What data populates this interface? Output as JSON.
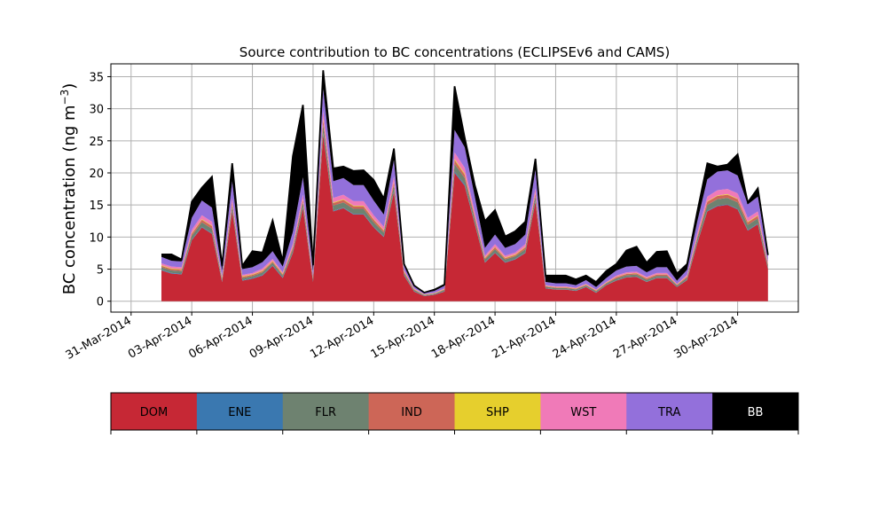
{
  "chart_data": [
    {
      "type": "area",
      "title": "Source contribution to BC concentrations (ECLIPSEv6 and CAMS)",
      "xlabel": "",
      "ylabel": "BC concentration (ng m⁻³)",
      "ylabel_main": "BC concentration (ng m",
      "ylabel_sup": "−3",
      "ylabel_end": ")",
      "xlim": [
        "2014-03-30",
        "2014-05-03"
      ],
      "ylim": [
        -1.7,
        37
      ],
      "grid": true,
      "stacked": true,
      "x_tick_labels": [
        "31-Mar-2014",
        "03-Apr-2014",
        "06-Apr-2014",
        "09-Apr-2014",
        "12-Apr-2014",
        "15-Apr-2014",
        "18-Apr-2014",
        "21-Apr-2014",
        "24-Apr-2014",
        "27-Apr-2014",
        "30-Apr-2014"
      ],
      "x_tick_dates": [
        "2014-03-31",
        "2014-04-03",
        "2014-04-06",
        "2014-04-09",
        "2014-04-12",
        "2014-04-15",
        "2014-04-18",
        "2014-04-21",
        "2014-04-24",
        "2014-04-27",
        "2014-04-30"
      ],
      "y_ticks": [
        0,
        5,
        10,
        15,
        20,
        25,
        30,
        35
      ],
      "y_tick_labels": [
        "0",
        "5",
        "10",
        "15",
        "20",
        "25",
        "30",
        "35"
      ],
      "x": [
        "2014-04-01 12:00",
        "2014-04-02 00:00",
        "2014-04-02 12:00",
        "2014-04-03 00:00",
        "2014-04-03 12:00",
        "2014-04-04 00:00",
        "2014-04-04 12:00",
        "2014-04-05 00:00",
        "2014-04-05 12:00",
        "2014-04-06 00:00",
        "2014-04-06 12:00",
        "2014-04-07 00:00",
        "2014-04-07 12:00",
        "2014-04-08 00:00",
        "2014-04-08 12:00",
        "2014-04-09 00:00",
        "2014-04-09 12:00",
        "2014-04-10 00:00",
        "2014-04-10 12:00",
        "2014-04-11 00:00",
        "2014-04-11 12:00",
        "2014-04-12 00:00",
        "2014-04-12 12:00",
        "2014-04-13 00:00",
        "2014-04-13 12:00",
        "2014-04-14 00:00",
        "2014-04-14 12:00",
        "2014-04-15 00:00",
        "2014-04-15 12:00",
        "2014-04-16 00:00",
        "2014-04-16 12:00",
        "2014-04-17 00:00",
        "2014-04-17 12:00",
        "2014-04-18 00:00",
        "2014-04-18 12:00",
        "2014-04-19 00:00",
        "2014-04-19 12:00",
        "2014-04-20 00:00",
        "2014-04-20 12:00",
        "2014-04-21 00:00",
        "2014-04-21 12:00",
        "2014-04-22 00:00",
        "2014-04-22 12:00",
        "2014-04-23 00:00",
        "2014-04-23 12:00",
        "2014-04-24 00:00",
        "2014-04-24 12:00",
        "2014-04-25 00:00",
        "2014-04-25 12:00",
        "2014-04-26 00:00",
        "2014-04-26 12:00",
        "2014-04-27 00:00",
        "2014-04-27 12:00",
        "2014-04-28 00:00",
        "2014-04-28 12:00",
        "2014-04-29 00:00",
        "2014-04-29 12:00",
        "2014-04-30 00:00",
        "2014-04-30 12:00",
        "2014-05-01 00:00",
        "2014-05-01 12:00"
      ],
      "series": [
        {
          "name": "DOM",
          "color": "#c62835",
          "values": [
            4.8,
            4.3,
            4.2,
            9.5,
            11.5,
            10.5,
            3.0,
            14.0,
            3.2,
            3.5,
            4.0,
            5.5,
            3.6,
            7.5,
            14.5,
            3.0,
            26.0,
            14.0,
            14.5,
            13.5,
            13.5,
            11.5,
            10.0,
            17.0,
            4.0,
            1.5,
            0.8,
            1.0,
            1.5,
            20.0,
            18.0,
            12.0,
            6.0,
            7.5,
            6.0,
            6.5,
            7.5,
            15.5,
            2.0,
            1.8,
            1.8,
            1.6,
            2.2,
            1.3,
            2.5,
            3.2,
            3.7,
            3.8,
            3.0,
            3.6,
            3.6,
            2.2,
            3.3,
            9.0,
            14.0,
            14.8,
            15.0,
            14.3,
            11.0,
            12.0,
            5.0
          ]
        },
        {
          "name": "ENE",
          "color": "#3a78b0",
          "values": [
            0.1,
            0.1,
            0.1,
            0.1,
            0.1,
            0.1,
            0.1,
            0.1,
            0.1,
            0.1,
            0.1,
            0.1,
            0.1,
            0.1,
            0.1,
            0.1,
            0.2,
            0.1,
            0.1,
            0.1,
            0.1,
            0.1,
            0.1,
            0.1,
            0.1,
            0.05,
            0.05,
            0.05,
            0.05,
            0.2,
            0.2,
            0.1,
            0.1,
            0.1,
            0.1,
            0.1,
            0.1,
            0.1,
            0.05,
            0.05,
            0.05,
            0.05,
            0.05,
            0.05,
            0.05,
            0.05,
            0.05,
            0.05,
            0.05,
            0.05,
            0.05,
            0.05,
            0.05,
            0.1,
            0.1,
            0.1,
            0.1,
            0.1,
            0.1,
            0.1,
            0.1
          ]
        },
        {
          "name": "FLR",
          "color": "#6e8270",
          "values": [
            0.4,
            0.4,
            0.4,
            0.6,
            0.7,
            0.7,
            0.3,
            0.8,
            0.3,
            0.3,
            0.4,
            0.4,
            0.3,
            0.5,
            0.8,
            0.3,
            1.4,
            0.8,
            0.8,
            0.8,
            0.8,
            0.7,
            0.6,
            0.9,
            0.3,
            0.2,
            0.1,
            0.1,
            0.2,
            1.2,
            1.0,
            0.7,
            0.4,
            0.5,
            0.4,
            0.4,
            0.5,
            0.8,
            0.2,
            0.2,
            0.2,
            0.2,
            0.2,
            0.2,
            0.2,
            0.3,
            0.3,
            0.3,
            0.3,
            0.3,
            0.3,
            0.2,
            0.3,
            0.6,
            0.9,
            1.0,
            1.0,
            1.0,
            0.8,
            0.8,
            0.4
          ]
        },
        {
          "name": "IND",
          "color": "#cd6657",
          "values": [
            0.2,
            0.2,
            0.2,
            0.3,
            0.4,
            0.4,
            0.2,
            0.4,
            0.2,
            0.2,
            0.2,
            0.2,
            0.2,
            0.3,
            0.4,
            0.2,
            0.7,
            0.4,
            0.4,
            0.4,
            0.4,
            0.4,
            0.3,
            0.5,
            0.2,
            0.1,
            0.05,
            0.05,
            0.1,
            0.6,
            0.5,
            0.4,
            0.2,
            0.3,
            0.2,
            0.2,
            0.3,
            0.4,
            0.1,
            0.1,
            0.1,
            0.1,
            0.1,
            0.1,
            0.1,
            0.2,
            0.2,
            0.2,
            0.2,
            0.2,
            0.2,
            0.1,
            0.2,
            0.3,
            0.5,
            0.5,
            0.5,
            0.5,
            0.4,
            0.4,
            0.2
          ]
        },
        {
          "name": "SHP",
          "color": "#e6cf2d",
          "values": [
            0.1,
            0.1,
            0.1,
            0.1,
            0.1,
            0.1,
            0.1,
            0.1,
            0.1,
            0.1,
            0.1,
            0.1,
            0.1,
            0.1,
            0.1,
            0.1,
            0.2,
            0.1,
            0.1,
            0.1,
            0.1,
            0.1,
            0.1,
            0.1,
            0.1,
            0.05,
            0.05,
            0.05,
            0.05,
            0.2,
            0.2,
            0.1,
            0.1,
            0.1,
            0.1,
            0.1,
            0.1,
            0.1,
            0.05,
            0.05,
            0.05,
            0.05,
            0.05,
            0.05,
            0.05,
            0.05,
            0.05,
            0.05,
            0.05,
            0.05,
            0.05,
            0.05,
            0.05,
            0.1,
            0.1,
            0.1,
            0.1,
            0.1,
            0.1,
            0.1,
            0.1
          ]
        },
        {
          "name": "WST",
          "color": "#f07ab8",
          "values": [
            0.3,
            0.3,
            0.3,
            0.5,
            0.6,
            0.6,
            0.2,
            0.7,
            0.2,
            0.2,
            0.3,
            0.3,
            0.2,
            0.4,
            0.7,
            0.2,
            1.2,
            0.7,
            0.7,
            0.7,
            0.7,
            0.6,
            0.5,
            0.8,
            0.2,
            0.1,
            0.05,
            0.05,
            0.1,
            1.0,
            0.9,
            0.6,
            0.3,
            0.4,
            0.3,
            0.3,
            0.4,
            0.7,
            0.1,
            0.1,
            0.1,
            0.1,
            0.1,
            0.1,
            0.1,
            0.2,
            0.2,
            0.2,
            0.2,
            0.2,
            0.2,
            0.1,
            0.2,
            0.5,
            0.7,
            0.8,
            0.8,
            0.8,
            0.6,
            0.6,
            0.3
          ]
        },
        {
          "name": "TRA",
          "color": "#9370db",
          "values": [
            1.0,
            0.9,
            0.9,
            1.9,
            2.3,
            2.2,
            0.9,
            2.6,
            0.9,
            0.9,
            1.0,
            1.2,
            0.9,
            1.9,
            2.7,
            0.9,
            3.4,
            2.6,
            2.6,
            2.5,
            2.5,
            2.3,
            1.9,
            2.6,
            0.8,
            0.4,
            0.2,
            0.3,
            0.4,
            3.5,
            3.2,
            2.4,
            1.2,
            1.5,
            1.2,
            1.3,
            1.5,
            2.9,
            0.5,
            0.5,
            0.5,
            0.4,
            0.6,
            0.4,
            0.6,
            0.8,
            0.9,
            0.9,
            0.7,
            0.9,
            0.9,
            0.5,
            0.8,
            1.8,
            2.7,
            2.9,
            2.9,
            2.8,
            2.1,
            2.3,
            1.0
          ]
        },
        {
          "name": "BB",
          "color": "#000000",
          "values": [
            0.4,
            1.0,
            0.3,
            2.5,
            2.0,
            4.8,
            0.7,
            2.8,
            0.5,
            2.5,
            1.5,
            4.8,
            0.8,
            11.8,
            11.3,
            0.8,
            2.9,
            2.0,
            1.8,
            2.2,
            2.3,
            3.2,
            2.5,
            1.8,
            0.1,
            0.05,
            0.05,
            0.2,
            0.2,
            6.8,
            1.5,
            1.8,
            4.2,
            3.8,
            1.8,
            2.0,
            2.0,
            1.7,
            1.0,
            1.2,
            1.2,
            0.9,
            0.7,
            0.8,
            1.1,
            1.0,
            2.5,
            3.0,
            1.5,
            2.4,
            2.5,
            1.1,
            0.9,
            1.5,
            2.5,
            0.8,
            0.9,
            3.3,
            0.3,
            1.3,
            0.1
          ]
        }
      ]
    },
    {
      "type": "colorbar",
      "categories": [
        "DOM",
        "ENE",
        "FLR",
        "IND",
        "SHP",
        "WST",
        "TRA",
        "BB"
      ],
      "colors": [
        "#c62835",
        "#3a78b0",
        "#6e8270",
        "#cd6657",
        "#e6cf2d",
        "#f07ab8",
        "#9370db",
        "#000000"
      ],
      "text_colors": [
        "#000000",
        "#000000",
        "#000000",
        "#000000",
        "#000000",
        "#000000",
        "#000000",
        "#ffffff"
      ]
    }
  ]
}
